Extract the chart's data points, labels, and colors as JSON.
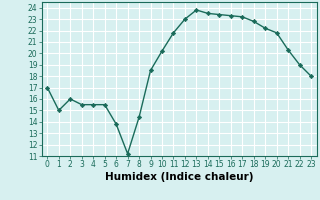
{
  "x": [
    0,
    1,
    2,
    3,
    4,
    5,
    6,
    7,
    8,
    9,
    10,
    11,
    12,
    13,
    14,
    15,
    16,
    17,
    18,
    19,
    20,
    21,
    22,
    23
  ],
  "y": [
    17,
    15,
    16,
    15.5,
    15.5,
    15.5,
    13.8,
    11.2,
    14.4,
    18.5,
    20.2,
    21.8,
    23.0,
    23.8,
    23.5,
    23.4,
    23.3,
    23.2,
    22.8,
    22.2,
    21.8,
    20.3,
    19.0,
    18.0
  ],
  "line_color": "#1a6b5a",
  "marker": "D",
  "marker_size": 2.2,
  "bg_color": "#d7f0f0",
  "grid_color": "#b0d8d8",
  "xlabel": "Humidex (Indice chaleur)",
  "ylim": [
    11,
    24.5
  ],
  "xlim": [
    -0.5,
    23.5
  ],
  "yticks": [
    11,
    12,
    13,
    14,
    15,
    16,
    17,
    18,
    19,
    20,
    21,
    22,
    23,
    24
  ],
  "xticks": [
    0,
    1,
    2,
    3,
    4,
    5,
    6,
    7,
    8,
    9,
    10,
    11,
    12,
    13,
    14,
    15,
    16,
    17,
    18,
    19,
    20,
    21,
    22,
    23
  ],
  "tick_fontsize": 5.5,
  "label_fontsize": 7.5
}
